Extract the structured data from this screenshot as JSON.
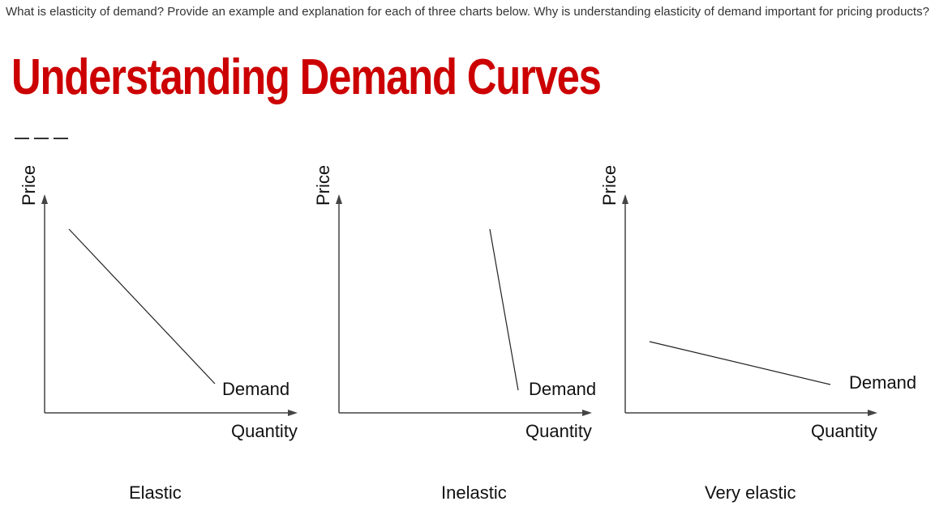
{
  "question": "What is elasticity of demand? Provide an example and explanation for each of three charts below. Why is understanding elasticity of demand important for pricing products?",
  "title": "Understanding Demand Curves",
  "charts": [
    {
      "caption": "Elastic",
      "y_axis_label": "Price",
      "x_axis_label": "Quantity",
      "curve_label": "Demand"
    },
    {
      "caption": "Inelastic",
      "y_axis_label": "Price",
      "x_axis_label": "Quantity",
      "curve_label": "Demand"
    },
    {
      "caption": "Very elastic",
      "y_axis_label": "Price",
      "x_axis_label": "Quantity",
      "curve_label": "Demand"
    }
  ],
  "colors": {
    "title": "#cc0000",
    "text": "#333333",
    "axis": "#444444"
  }
}
